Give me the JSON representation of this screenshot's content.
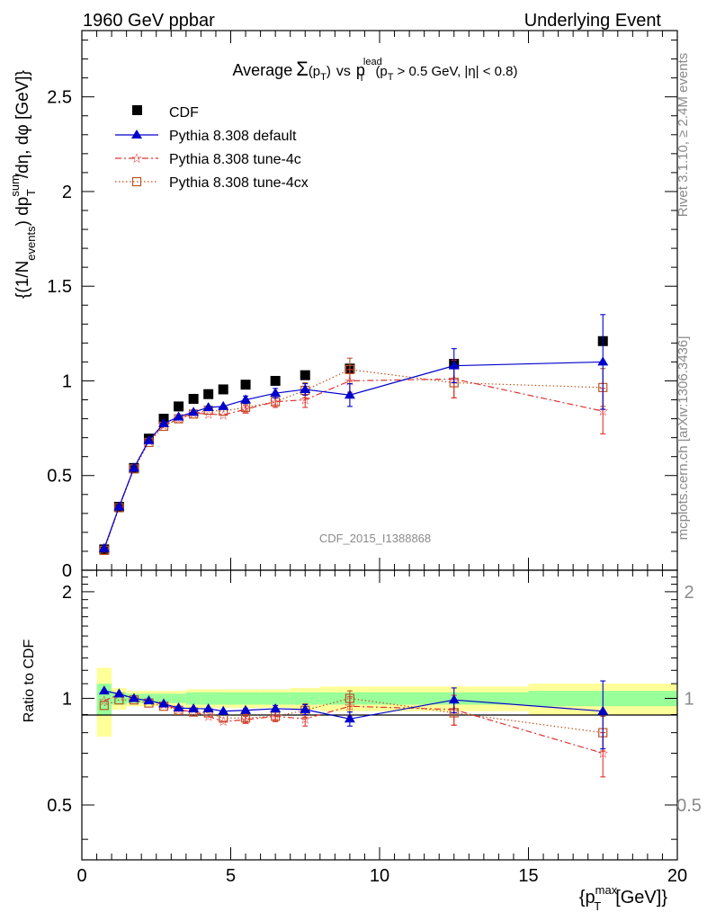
{
  "header": {
    "left": "1960 GeV ppbar",
    "right": "Underlying Event"
  },
  "title_parts": {
    "average": "Average",
    "sigma": "Σ",
    "pt_open": "(p",
    "T_sub": "T",
    "pt_close": ")",
    "vs": "vs",
    "p": "p",
    "lead_sup": "lead",
    "cut_open": "(p",
    "cut_rest": "> 0.5 GeV, |η| < 0.8)"
  },
  "side": {
    "rivet": "Rivet 3.1.10, ≥ 2.4M events",
    "mcplots": "mcplots.cern.ch [arXiv:1306.3436]"
  },
  "watermark": "CDF_2015_I1388868",
  "ylabel_main": {
    "a": "{(1/N",
    "events": "events",
    "b": ") dp",
    "sum": "sum",
    "T": "T",
    "c": "/dη, dφ [GeV]}"
  },
  "ylabel_ratio": "Ratio to CDF",
  "xlabel": {
    "a": "{p",
    "max": "max",
    "T": "T",
    "b": "[GeV]}"
  },
  "legend": [
    {
      "label": "CDF"
    },
    {
      "label": "Pythia 8.308 default"
    },
    {
      "label": "Pythia 8.308 tune-4c"
    },
    {
      "label": "Pythia 8.308 tune-4cx"
    }
  ],
  "colors": {
    "cdf": "#000000",
    "default": "#0000cc",
    "tune4c": "#dd3333",
    "tune4cx": "#bb5522",
    "band_inner": "#99ff99",
    "band_outer": "#ffff99"
  },
  "chart_data": [
    {
      "type": "scatter",
      "panel": "main",
      "xlim": [
        0,
        20
      ],
      "ylim": [
        0,
        2.85
      ],
      "yticks": [
        0.5,
        1,
        1.5,
        2,
        2.5
      ],
      "x": [
        0.75,
        1.25,
        1.75,
        2.25,
        2.75,
        3.25,
        3.75,
        4.25,
        4.75,
        5.5,
        6.5,
        7.5,
        9.0,
        12.5,
        17.5
      ],
      "series": [
        {
          "name": "CDF",
          "values": [
            0.11,
            0.335,
            0.54,
            0.695,
            0.8,
            0.865,
            0.905,
            0.93,
            0.955,
            0.98,
            1.0,
            1.03,
            1.065,
            1.09,
            1.21
          ]
        },
        {
          "name": "Pythia 8.308 default",
          "values": [
            0.115,
            0.335,
            0.54,
            0.685,
            0.775,
            0.81,
            0.835,
            0.86,
            0.865,
            0.9,
            0.935,
            0.955,
            0.925,
            1.08,
            1.1
          ],
          "errors": [
            0,
            0,
            0,
            0,
            0,
            0,
            0,
            0,
            0,
            0.02,
            0.025,
            0.03,
            0.06,
            0.09,
            0.25
          ]
        },
        {
          "name": "Pythia 8.308 tune-4c",
          "values": [
            0.11,
            0.335,
            0.54,
            0.685,
            0.765,
            0.8,
            0.83,
            0.825,
            0.82,
            0.85,
            0.89,
            0.9,
            1.0,
            1.01,
            0.84
          ],
          "errors": [
            0,
            0,
            0,
            0,
            0,
            0,
            0,
            0,
            0,
            0.02,
            0.03,
            0.04,
            0.06,
            0.1,
            0.12
          ]
        },
        {
          "name": "Pythia 8.308 tune-4cx",
          "values": [
            0.105,
            0.33,
            0.535,
            0.675,
            0.76,
            0.8,
            0.825,
            0.845,
            0.84,
            0.86,
            0.89,
            0.95,
            1.06,
            0.99,
            0.965
          ],
          "errors": [
            0,
            0,
            0,
            0,
            0,
            0,
            0,
            0,
            0,
            0.02,
            0.03,
            0.04,
            0.06,
            0.08,
            0.1
          ]
        }
      ]
    },
    {
      "type": "scatter",
      "panel": "ratio",
      "ylabel": "Ratio to CDF",
      "xlabel": "{p_T^max [GeV]}",
      "xlim": [
        0,
        20
      ],
      "ylim": [
        0.35,
        2.3
      ],
      "xticks": [
        0,
        5,
        10,
        15,
        20
      ],
      "yticks": [
        0.5,
        1,
        2
      ],
      "x": [
        0.75,
        1.25,
        1.75,
        2.25,
        2.75,
        3.25,
        3.75,
        4.25,
        4.75,
        5.5,
        6.5,
        7.5,
        9.0,
        12.5,
        17.5
      ],
      "band_edges": [
        0.5,
        1.0,
        1.5,
        2.0,
        2.5,
        3.0,
        3.5,
        4.0,
        4.5,
        5.0,
        6.0,
        7.0,
        8.0,
        10.0,
        15.0,
        20.0
      ],
      "band_inner": [
        0.1,
        0.04,
        0.03,
        0.03,
        0.03,
        0.03,
        0.04,
        0.04,
        0.04,
        0.04,
        0.04,
        0.04,
        0.04,
        0.04,
        0.05
      ],
      "band_outer": [
        0.22,
        0.07,
        0.05,
        0.05,
        0.05,
        0.05,
        0.06,
        0.06,
        0.06,
        0.06,
        0.06,
        0.07,
        0.08,
        0.08,
        0.1
      ],
      "series": [
        {
          "name": "Pythia 8.308 default",
          "values": [
            1.05,
            1.03,
            1.0,
            0.985,
            0.965,
            0.94,
            0.935,
            0.935,
            0.92,
            0.925,
            0.935,
            0.93,
            0.875,
            0.99,
            0.92
          ],
          "errors": [
            0,
            0,
            0,
            0,
            0,
            0,
            0,
            0,
            0,
            0.01,
            0.02,
            0.03,
            0.04,
            0.08,
            0.2
          ]
        },
        {
          "name": "Pythia 8.308 tune-4c",
          "values": [
            0.985,
            1.025,
            1.0,
            0.985,
            0.96,
            0.93,
            0.915,
            0.89,
            0.86,
            0.87,
            0.89,
            0.875,
            0.95,
            0.93,
            0.7
          ],
          "errors": [
            0,
            0,
            0,
            0,
            0,
            0,
            0,
            0,
            0,
            0.02,
            0.03,
            0.04,
            0.06,
            0.09,
            0.1
          ]
        },
        {
          "name": "Pythia 8.308 tune-4cx",
          "values": [
            0.955,
            0.99,
            0.99,
            0.97,
            0.95,
            0.925,
            0.915,
            0.91,
            0.88,
            0.88,
            0.89,
            0.925,
            1.0,
            0.91,
            0.8
          ],
          "errors": [
            0,
            0,
            0,
            0,
            0,
            0,
            0,
            0,
            0,
            0.02,
            0.03,
            0.04,
            0.05,
            0.07,
            0.09
          ]
        }
      ]
    }
  ]
}
